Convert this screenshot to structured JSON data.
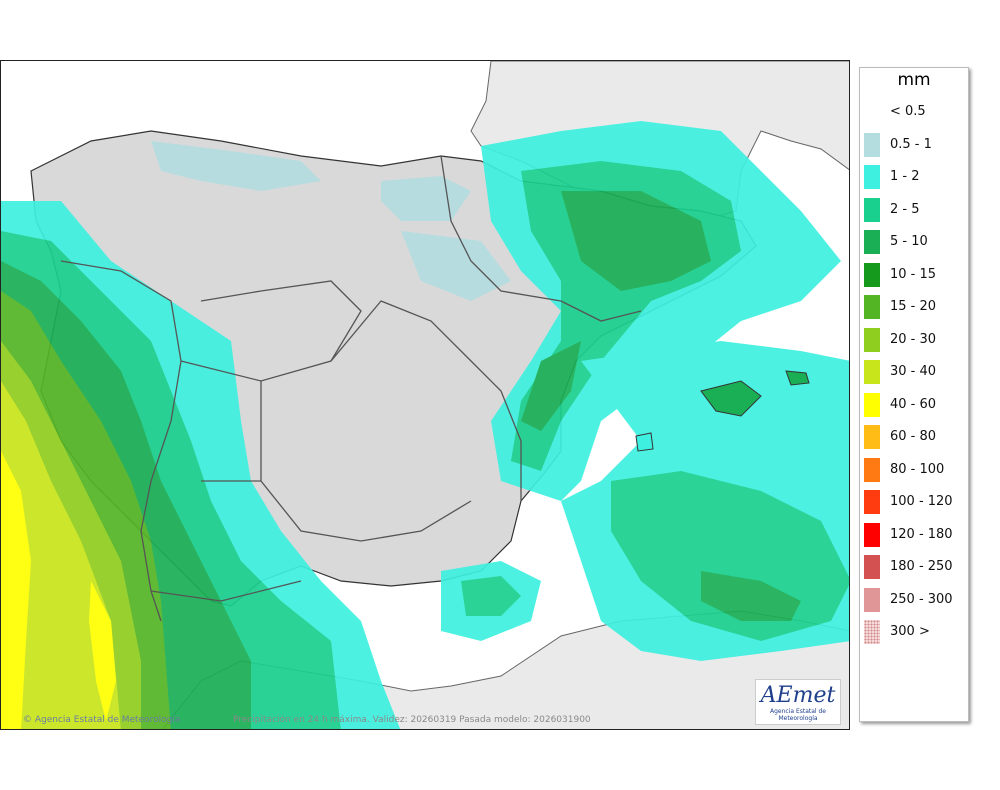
{
  "legend": {
    "title": "mm",
    "classes": [
      {
        "label": "< 0.5",
        "color": "#ffffff"
      },
      {
        "label": "0.5 - 1",
        "color": "#b4dde0"
      },
      {
        "label": "1 - 2",
        "color": "#3ef0df"
      },
      {
        "label": "2 - 5",
        "color": "#1ad08e"
      },
      {
        "label": "5 - 10",
        "color": "#1aaf55"
      },
      {
        "label": "10 - 15",
        "color": "#169a1e"
      },
      {
        "label": "15 - 20",
        "color": "#54b524"
      },
      {
        "label": "20 - 30",
        "color": "#8fcd1e"
      },
      {
        "label": "30 - 40",
        "color": "#c8e41a"
      },
      {
        "label": "40 - 60",
        "color": "#ffff00"
      },
      {
        "label": "60 - 80",
        "color": "#ffbb16"
      },
      {
        "label": "80 - 100",
        "color": "#ff7a13"
      },
      {
        "label": "100 - 120",
        "color": "#ff3c10"
      },
      {
        "label": "120 - 180",
        "color": "#ff0000"
      },
      {
        "label": "180 - 250",
        "color": "#d35150"
      },
      {
        "label": "250 - 300",
        "color": "#e09696"
      },
      {
        "label": "300 >",
        "color": "#f6dada",
        "hatched": true
      }
    ]
  },
  "footer": {
    "agency": "Agencia Estatal de Meteorología",
    "caption": "Precipitación en 24 h máxima. Validez: 20260319 Pasada modelo: 2026031900"
  },
  "logo": {
    "text": "AEmet",
    "subtitle": "Agencia Estatal de Meteorología"
  },
  "colors": {
    "land": "#d9d9d9",
    "sea": "#ffffff",
    "foreign_land": "#eaeaea",
    "border": "#444444"
  }
}
